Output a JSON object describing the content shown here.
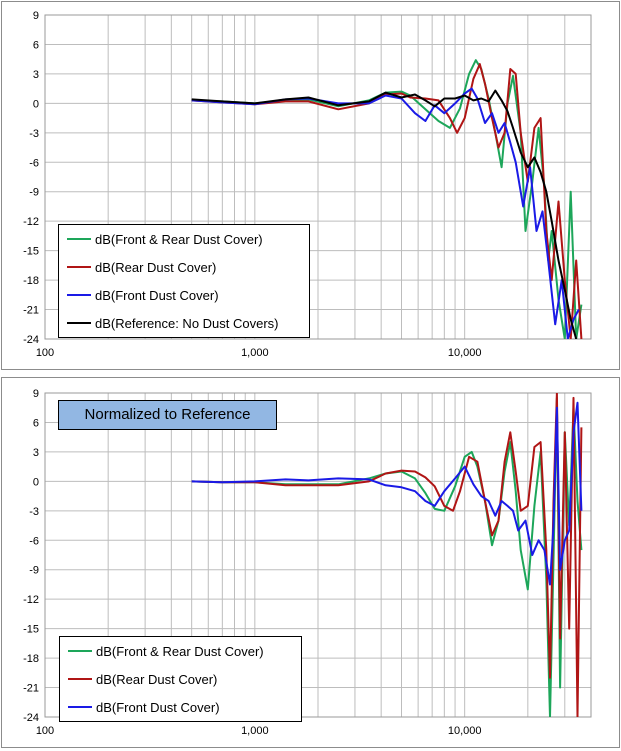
{
  "colors": {
    "front_rear": "#1da65a",
    "rear": "#b01515",
    "front": "#1a1ae6",
    "reference": "#000000",
    "grid": "#bdbdbd",
    "annotation_bg": "#92b7e3"
  },
  "chart_data": [
    {
      "type": "line",
      "title": "",
      "xlabel": "",
      "ylabel": "",
      "x_scale": "log",
      "xlim": [
        100,
        40000
      ],
      "ylim": [
        -24,
        9
      ],
      "x_ticks": [
        "100",
        "1,000",
        "10,000"
      ],
      "y_ticks": [
        "9",
        "6",
        "3",
        "0",
        "-3",
        "-6",
        "-9",
        "-12",
        "-15",
        "-18",
        "-21",
        "-24"
      ],
      "grid": true,
      "legend_position": "bottom-left",
      "legend": [
        "dB(Front & Rear Dust Cover)",
        "dB(Rear Dust Cover)",
        "dB(Front Dust Cover)",
        "dB(Reference: No Dust Covers)"
      ],
      "series": [
        {
          "name": "dB(Front & Rear Dust Cover)",
          "x": [
            500,
            700,
            1000,
            1400,
            1800,
            2500,
            3500,
            4200,
            5000,
            5500,
            6500,
            7500,
            8500,
            9500,
            10500,
            11300,
            12000,
            13000,
            14000,
            15000,
            16000,
            17000,
            18500,
            19500,
            21000,
            22500,
            24000,
            25000,
            26000,
            28000,
            30000,
            32000,
            34000,
            36000
          ],
          "values": [
            0.3,
            0.2,
            0.0,
            0.3,
            0.4,
            -0.3,
            0.3,
            1.1,
            1.2,
            0.8,
            -0.6,
            -1.8,
            -2.5,
            -0.5,
            3.0,
            4.4,
            3.5,
            0.5,
            -3.0,
            -6.5,
            0.0,
            2.8,
            -3.0,
            -13.0,
            -8.0,
            -2.5,
            -8.5,
            -16.0,
            -13.0,
            -20.0,
            -24.0,
            -9.0,
            -24.0,
            -20.5
          ]
        },
        {
          "name": "dB(Rear Dust Cover)",
          "x": [
            500,
            700,
            1000,
            1400,
            1800,
            2500,
            3500,
            4200,
            5000,
            5500,
            6500,
            7500,
            8500,
            9200,
            10000,
            11000,
            11800,
            12500,
            13500,
            14500,
            15500,
            16500,
            17500,
            18500,
            20000,
            21500,
            23000,
            24500,
            26000,
            28000,
            30000,
            32000,
            34000,
            36000
          ],
          "values": [
            0.3,
            0.1,
            -0.1,
            0.2,
            0.2,
            -0.6,
            0.0,
            0.9,
            1.0,
            0.6,
            0.5,
            0.3,
            -1.5,
            -3.0,
            -1.5,
            2.5,
            4.0,
            2.0,
            -1.5,
            -4.5,
            -3.0,
            3.5,
            3.0,
            -3.0,
            -8.0,
            -2.5,
            -1.5,
            -13.0,
            -18.0,
            -10.0,
            -18.0,
            -24.0,
            -16.0,
            -24.0
          ]
        },
        {
          "name": "dB(Front Dust Cover)",
          "x": [
            500,
            700,
            1000,
            1400,
            1800,
            2500,
            3500,
            4200,
            5000,
            5800,
            6500,
            7200,
            8000,
            9000,
            10000,
            10800,
            11500,
            12500,
            13500,
            14500,
            15500,
            16500,
            17500,
            19000,
            20500,
            22000,
            23500,
            25000,
            27000,
            29000,
            31000,
            33000,
            35000
          ],
          "values": [
            0.3,
            0.1,
            -0.1,
            0.4,
            0.5,
            0.0,
            0.0,
            0.8,
            0.5,
            -1.0,
            -1.8,
            -0.2,
            -1.0,
            0.0,
            1.0,
            1.5,
            0.5,
            -2.0,
            -1.0,
            -3.0,
            -2.0,
            -4.0,
            -6.0,
            -10.5,
            -6.5,
            -13.0,
            -11.0,
            -16.0,
            -22.5,
            -18.0,
            -24.0,
            -22.0,
            -21.0
          ]
        },
        {
          "name": "dB(Reference: No Dust Covers)",
          "x": [
            500,
            700,
            1000,
            1400,
            1800,
            2500,
            3500,
            4200,
            5000,
            5800,
            6500,
            7200,
            8000,
            9000,
            10000,
            11000,
            12000,
            13000,
            14000,
            15000,
            16000,
            17000,
            18500,
            20000,
            21500,
            23000,
            24500,
            26000,
            28000,
            30000,
            32000,
            34000
          ],
          "values": [
            0.4,
            0.2,
            0.0,
            0.4,
            0.6,
            -0.2,
            0.2,
            1.1,
            0.6,
            0.9,
            0.3,
            -0.3,
            0.5,
            0.5,
            0.8,
            0.3,
            0.5,
            0.2,
            1.3,
            0.3,
            -0.8,
            -2.5,
            -5.0,
            -6.5,
            -5.5,
            -7.0,
            -9.0,
            -12.0,
            -16.0,
            -19.0,
            -22.0,
            -24.0
          ]
        }
      ]
    },
    {
      "type": "line",
      "title": "",
      "xlabel": "",
      "ylabel": "",
      "x_scale": "log",
      "xlim": [
        100,
        40000
      ],
      "ylim": [
        -24,
        9
      ],
      "x_ticks": [
        "100",
        "1,000",
        "10,000"
      ],
      "y_ticks": [
        "9",
        "6",
        "3",
        "0",
        "-3",
        "-6",
        "-9",
        "-12",
        "-15",
        "-18",
        "-21",
        "-24"
      ],
      "grid": true,
      "legend_position": "bottom-left",
      "annotation": "Normalized to Reference",
      "legend": [
        "dB(Front & Rear Dust Cover)",
        "dB(Rear Dust Cover)",
        "dB(Front Dust Cover)"
      ],
      "series": [
        {
          "name": "dB(Front & Rear Dust Cover)",
          "x": [
            500,
            700,
            1000,
            1400,
            1800,
            2500,
            3500,
            4200,
            5000,
            5800,
            6500,
            7200,
            8000,
            9000,
            10000,
            10800,
            11500,
            12500,
            13500,
            14500,
            15500,
            16500,
            17500,
            18500,
            20000,
            21500,
            23000,
            24500,
            25500,
            26500,
            27500,
            28500,
            30000,
            31500,
            33000,
            34500,
            36000
          ],
          "values": [
            0.0,
            -0.1,
            -0.1,
            -0.3,
            -0.3,
            -0.3,
            0.3,
            0.8,
            1.0,
            0.3,
            -1.2,
            -2.8,
            -3.0,
            -0.5,
            2.5,
            3.0,
            1.5,
            -2.0,
            -6.5,
            -4.0,
            1.0,
            4.0,
            -1.0,
            -7.0,
            -11.0,
            -2.5,
            3.0,
            -10.0,
            -24.0,
            -8.0,
            8.5,
            -21.0,
            5.0,
            -4.5,
            7.5,
            -2.0,
            -7.0
          ]
        },
        {
          "name": "dB(Rear Dust Cover)",
          "x": [
            500,
            700,
            1000,
            1400,
            1800,
            2500,
            3500,
            4200,
            5000,
            5800,
            6500,
            7200,
            8000,
            8800,
            9500,
            10500,
            11500,
            12500,
            13500,
            14500,
            15500,
            16500,
            17500,
            18500,
            20000,
            21500,
            23000,
            24500,
            25500,
            26500,
            27500,
            28500,
            30000,
            31500,
            33000,
            34500,
            36000
          ],
          "values": [
            0.0,
            -0.1,
            -0.1,
            -0.4,
            -0.4,
            -0.4,
            0.0,
            0.8,
            1.1,
            1.0,
            0.4,
            -0.5,
            -2.5,
            -3.0,
            -1.0,
            2.5,
            2.0,
            -2.0,
            -5.5,
            -4.0,
            2.0,
            5.0,
            1.0,
            -3.0,
            -2.5,
            3.5,
            4.0,
            -7.0,
            -20.0,
            -2.0,
            9.0,
            -16.0,
            5.0,
            -15.0,
            8.5,
            -24.0,
            5.5
          ]
        },
        {
          "name": "dB(Front Dust Cover)",
          "x": [
            500,
            700,
            1000,
            1400,
            1800,
            2500,
            3500,
            4200,
            5000,
            5800,
            6500,
            7200,
            8000,
            9000,
            10000,
            11000,
            12000,
            13000,
            14000,
            15000,
            16000,
            17000,
            18000,
            19500,
            21000,
            22500,
            24000,
            25500,
            26500,
            27500,
            28500,
            30000,
            31500,
            33000,
            34500,
            36000
          ],
          "values": [
            0.0,
            -0.1,
            0.0,
            0.2,
            0.1,
            0.3,
            0.2,
            -0.4,
            -0.6,
            -1.0,
            -2.0,
            -2.5,
            -1.0,
            0.3,
            1.5,
            -0.3,
            -1.5,
            -2.0,
            -3.5,
            -2.0,
            -2.5,
            -3.0,
            -5.0,
            -4.0,
            -7.5,
            -6.0,
            -7.0,
            -10.5,
            -4.5,
            7.5,
            -9.0,
            -6.0,
            -5.0,
            5.0,
            8.0,
            -3.0
          ]
        }
      ]
    }
  ]
}
